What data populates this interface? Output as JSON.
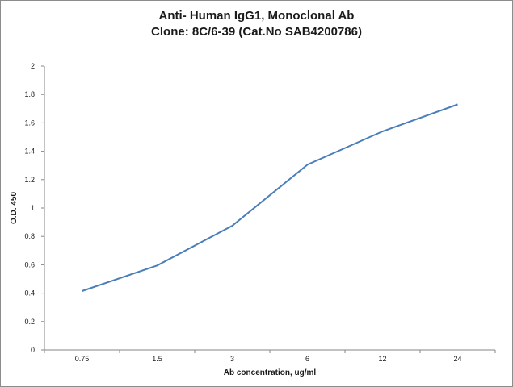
{
  "chart_data": {
    "type": "line",
    "title": "Anti- Human IgG1, Monoclonal Ab",
    "subtitle": "Clone: 8C/6-39 (Cat.No SAB4200786)",
    "xlabel": "Ab concentration, ug/ml",
    "ylabel": "O.D. 450",
    "categories": [
      "0.75",
      "1.5",
      "3",
      "6",
      "12",
      "24"
    ],
    "series": [
      {
        "values": [
          0.415,
          0.595,
          0.875,
          1.305,
          1.54,
          1.73
        ]
      }
    ],
    "ylim": [
      0,
      2
    ],
    "yticks": [
      "0",
      "0.2",
      "0.4",
      "0.6",
      "0.8",
      "1",
      "1.2",
      "1.4",
      "1.6",
      "1.8",
      "2"
    ],
    "grid": false,
    "legend": "none",
    "line_color": "#4a7ebb"
  }
}
